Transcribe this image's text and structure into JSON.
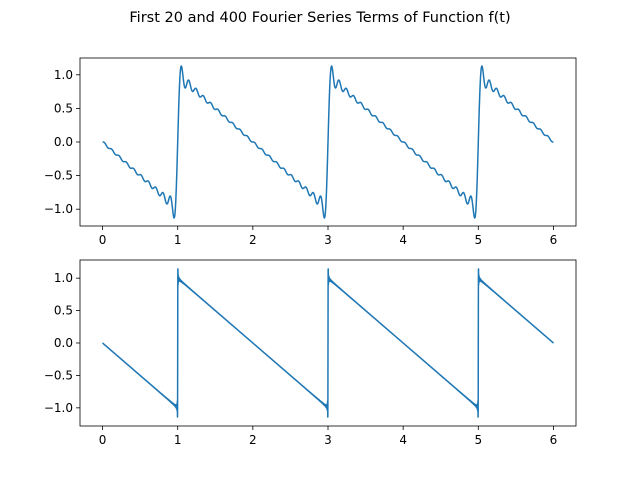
{
  "figure": {
    "title": "First 20 and 400 Fourier Series Terms of Function f(t)"
  },
  "chart_data": [
    {
      "type": "line",
      "title": "",
      "xlabel": "",
      "ylabel": "",
      "function": "sawtooth f(t) = 1 - (t - 1) on each period of length 2, discontinuities at t = 1, 3, 5",
      "terms": 20,
      "period": 2,
      "xlim": [
        -0.3,
        6.3
      ],
      "ylim": [
        -1.25,
        1.25
      ],
      "x_ticks": [
        0,
        1,
        2,
        3,
        4,
        5,
        6
      ],
      "x_tick_labels": [
        "0",
        "1",
        "2",
        "3",
        "4",
        "5",
        "6"
      ],
      "y_ticks": [
        -1.0,
        -0.5,
        0.0,
        0.5,
        1.0
      ],
      "y_tick_labels": [
        "−1.0",
        "−0.5",
        "0.0",
        "0.5",
        "1.0"
      ],
      "x_range": [
        0,
        6
      ],
      "grid": false,
      "series": [
        {
          "color": "#1f77b4"
        }
      ]
    },
    {
      "type": "line",
      "title": "",
      "xlabel": "",
      "ylabel": "",
      "function": "sawtooth f(t) = 1 - (t - 1) on each period of length 2, discontinuities at t = 1, 3, 5",
      "terms": 400,
      "period": 2,
      "xlim": [
        -0.3,
        6.3
      ],
      "ylim": [
        -1.28,
        1.28
      ],
      "x_ticks": [
        0,
        1,
        2,
        3,
        4,
        5,
        6
      ],
      "x_tick_labels": [
        "0",
        "1",
        "2",
        "3",
        "4",
        "5",
        "6"
      ],
      "y_ticks": [
        -1.0,
        -0.5,
        0.0,
        0.5,
        1.0
      ],
      "y_tick_labels": [
        "−1.0",
        "−0.5",
        "0.0",
        "0.5",
        "1.0"
      ],
      "x_range": [
        0,
        6
      ],
      "grid": false,
      "series": [
        {
          "color": "#1f77b4"
        }
      ]
    }
  ]
}
